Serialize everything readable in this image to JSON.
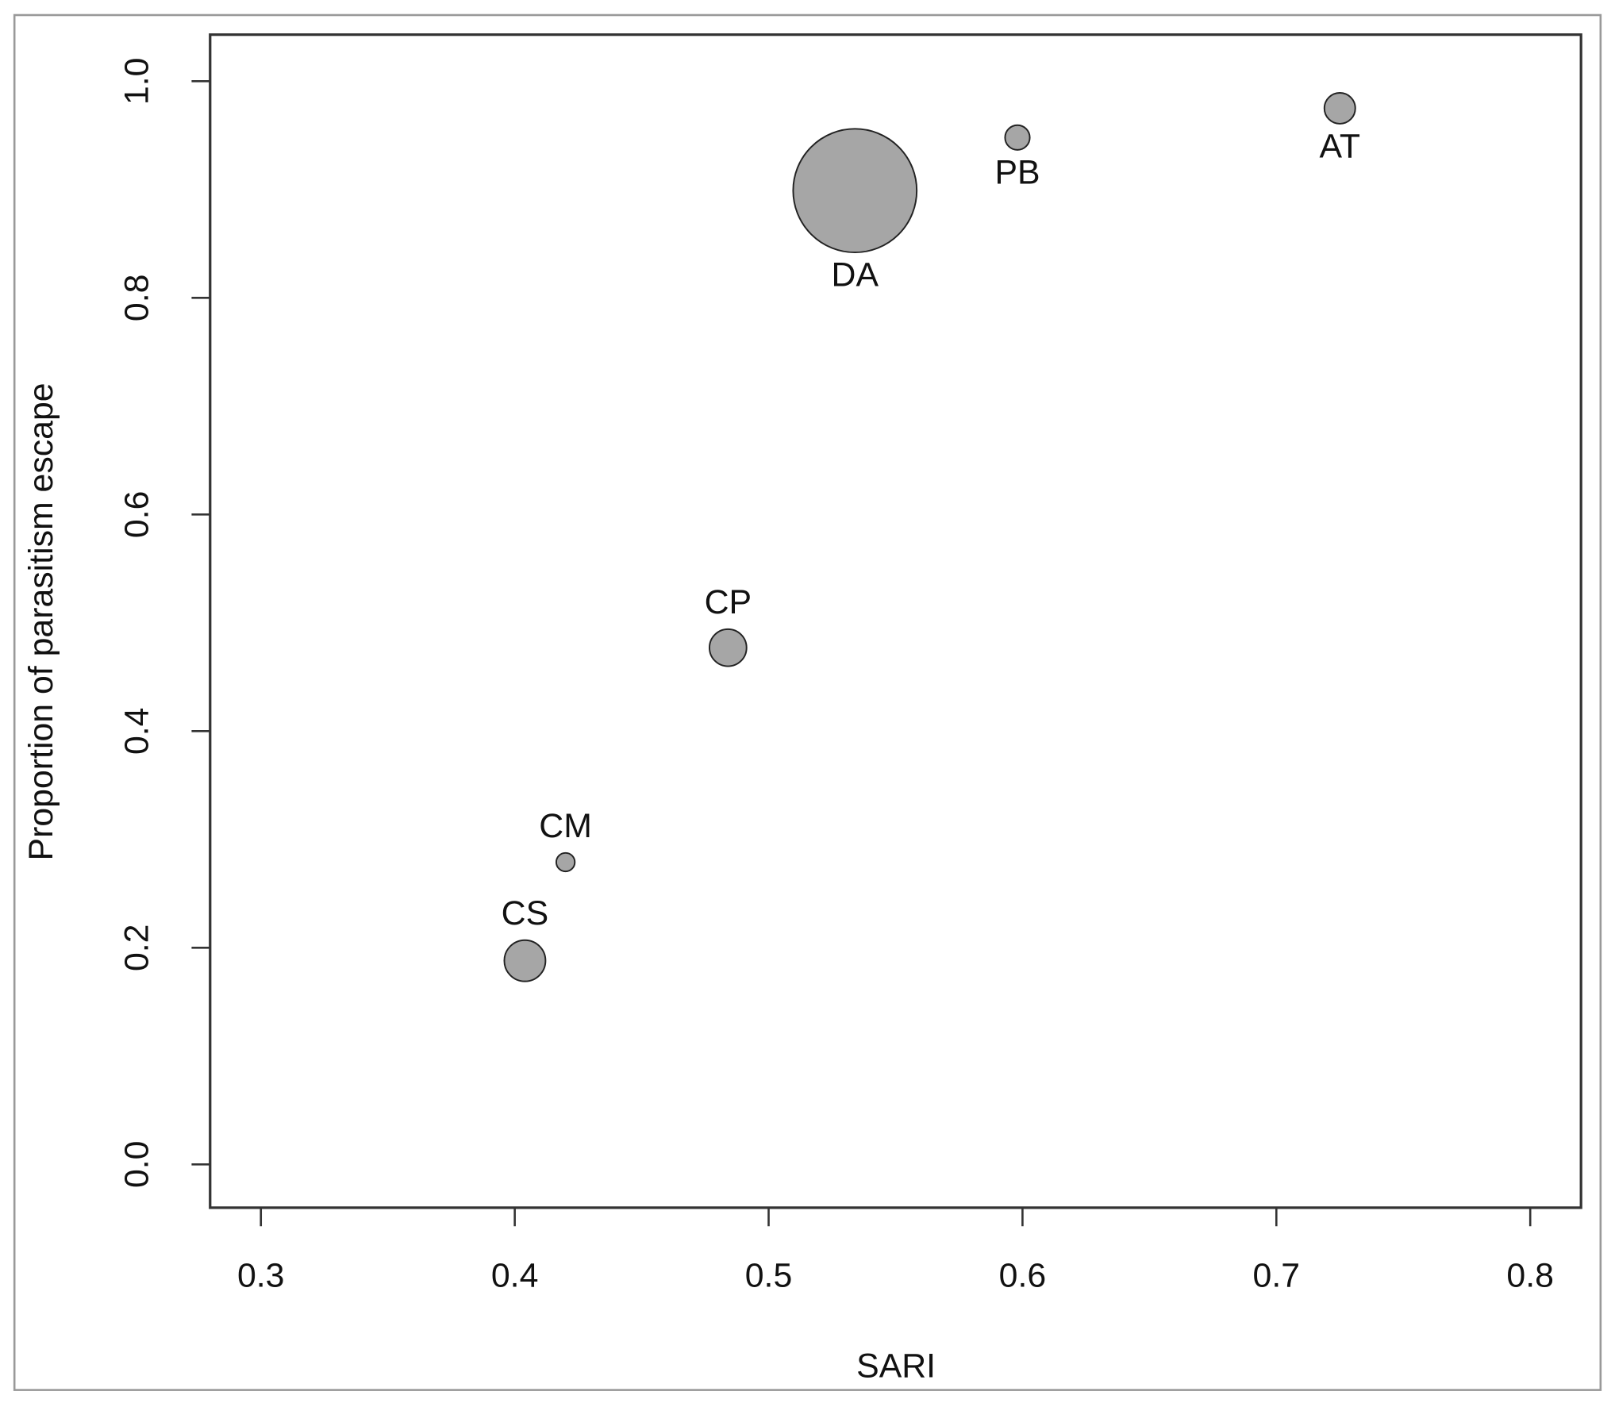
{
  "chart_data": {
    "type": "scatter",
    "x_label": "SARI",
    "y_label": "Proportion of parasitism escape",
    "labels": [
      "CS",
      "CM",
      "CP",
      "DA",
      "PB",
      "AT"
    ],
    "x": [
      0.404,
      0.42,
      0.484,
      0.534,
      0.598,
      0.725
    ],
    "values": [
      0.188,
      0.279,
      0.477,
      0.899,
      0.948,
      0.975
    ],
    "sizes": [
      20,
      9,
      18,
      60,
      12,
      15
    ],
    "color": "#a6a6a6",
    "xlim": [
      0.28,
      0.82
    ],
    "xticks": [
      0.3,
      0.4,
      0.5,
      0.6,
      0.7,
      0.8
    ],
    "ylim": [
      -0.04,
      1.043
    ],
    "yticks": [
      {
        "value": 0,
        "label": "0.0"
      },
      0.2,
      0.4,
      0.6,
      0.8,
      {
        "value": 1,
        "label": "1.0"
      }
    ]
  }
}
